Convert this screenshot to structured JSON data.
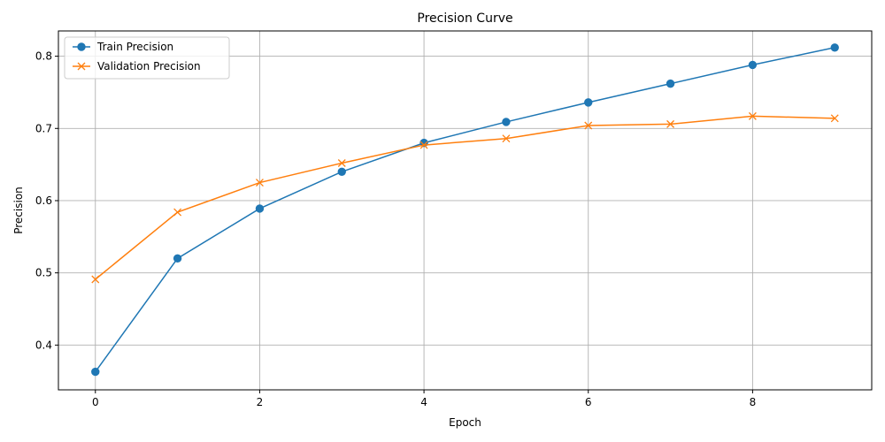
{
  "chart_data": {
    "type": "line",
    "title": "Precision Curve",
    "xlabel": "Epoch",
    "ylabel": "Precision",
    "x": [
      0,
      1,
      2,
      3,
      4,
      5,
      6,
      7,
      8,
      9
    ],
    "xlim": [
      -0.45,
      9.45
    ],
    "ylim": [
      0.338,
      0.835
    ],
    "xticks": [
      0,
      2,
      4,
      6,
      8
    ],
    "yticks": [
      0.4,
      0.5,
      0.6,
      0.7,
      0.8
    ],
    "grid": true,
    "legend_position": "top-left",
    "series": [
      {
        "name": "Train Precision",
        "color": "#1f77b4",
        "marker": "circle",
        "values": [
          0.363,
          0.52,
          0.589,
          0.64,
          0.68,
          0.709,
          0.736,
          0.762,
          0.788,
          0.812
        ]
      },
      {
        "name": "Validation Precision",
        "color": "#ff7f0e",
        "marker": "x",
        "values": [
          0.491,
          0.584,
          0.625,
          0.652,
          0.677,
          0.686,
          0.704,
          0.706,
          0.717,
          0.714
        ]
      }
    ]
  }
}
